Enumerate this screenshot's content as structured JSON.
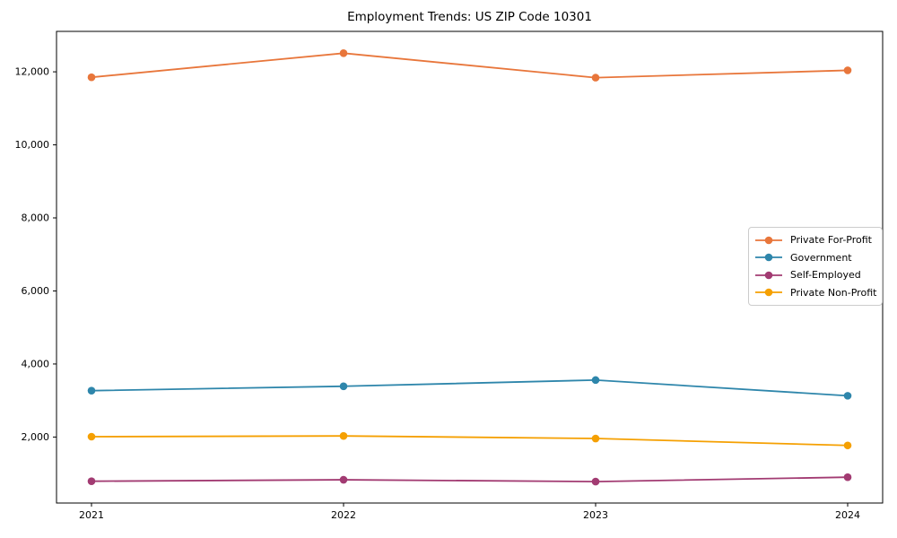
{
  "chart_data": {
    "type": "line",
    "title": "Employment Trends: US ZIP Code 10301",
    "x": [
      2021,
      2022,
      2023,
      2024
    ],
    "xtick_labels": [
      "2021",
      "2022",
      "2023",
      "2024"
    ],
    "yticks": [
      2000,
      4000,
      6000,
      8000,
      10000,
      12000
    ],
    "ytick_labels": [
      "2,000",
      "4,000",
      "6,000",
      "8,000",
      "10,000",
      "12,000"
    ],
    "ylim": [
      193,
      13107
    ],
    "xlabel": "",
    "ylabel": "",
    "grid": false,
    "legend_position": "right",
    "series": [
      {
        "name": "Private For-Profit",
        "color": "#E8763B",
        "values": [
          11850,
          12510,
          11840,
          12040
        ]
      },
      {
        "name": "Government",
        "color": "#2E86AB",
        "values": [
          3270,
          3390,
          3560,
          3130
        ]
      },
      {
        "name": "Self-Employed",
        "color": "#A23B72",
        "values": [
          790,
          830,
          780,
          900
        ]
      },
      {
        "name": "Private Non-Profit",
        "color": "#F5A002",
        "values": [
          2010,
          2030,
          1960,
          1770
        ]
      }
    ],
    "axis_color": "#000000",
    "background_color": "#ffffff"
  }
}
